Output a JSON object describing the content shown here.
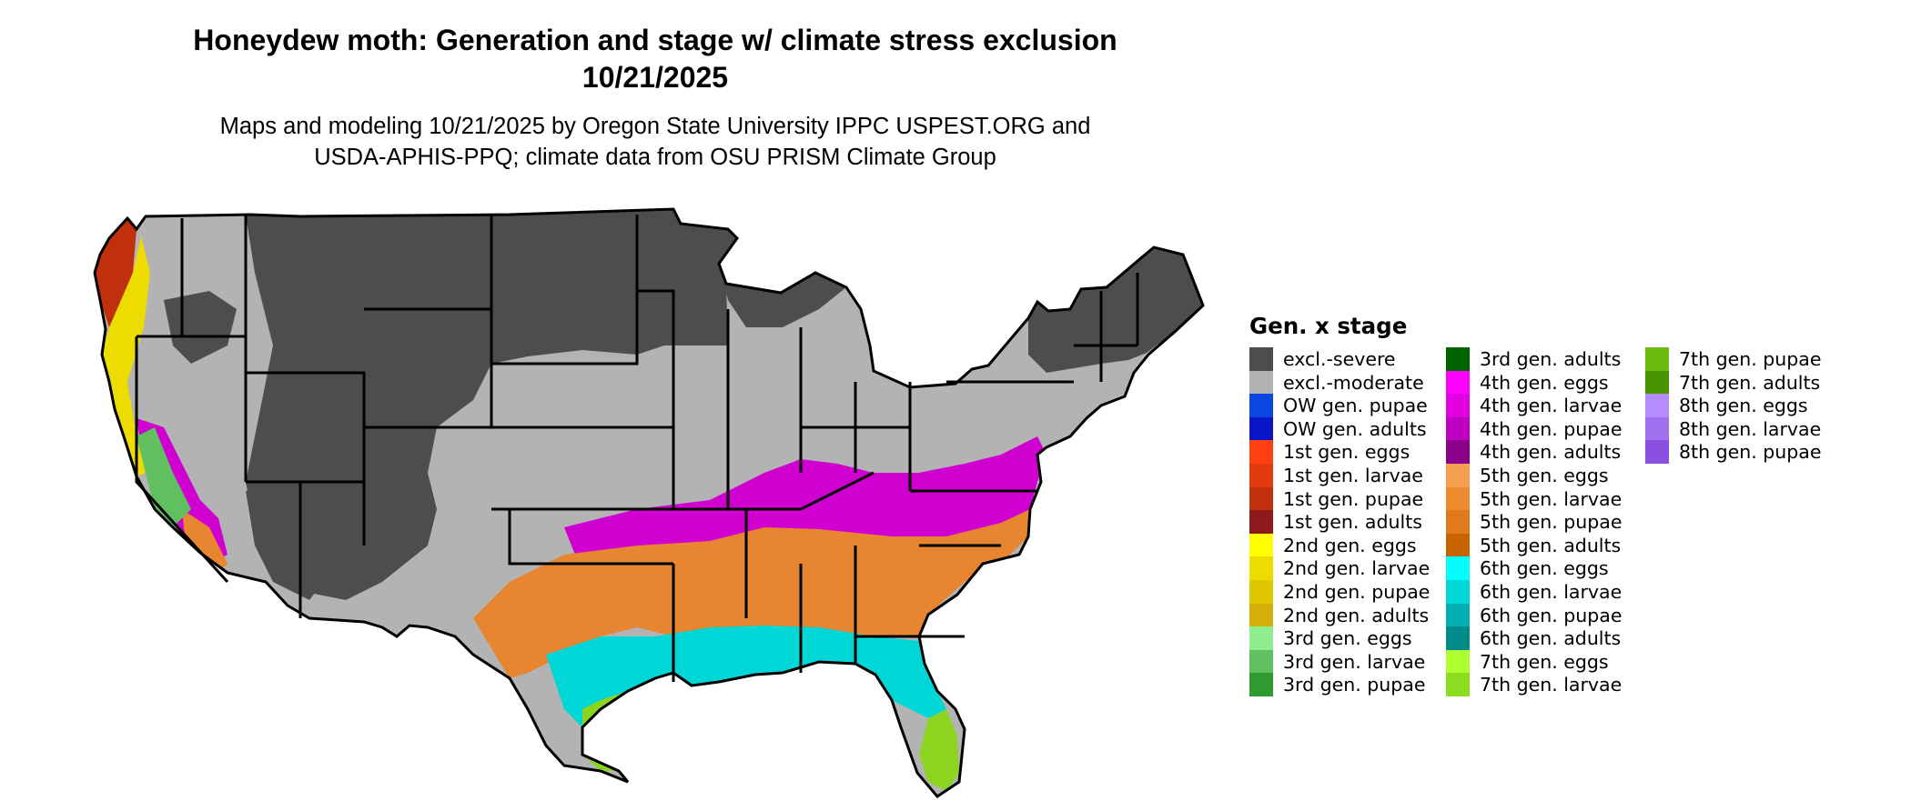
{
  "title_line1": "Honeydew moth: Generation and stage w/ climate stress exclusion",
  "title_line2": "10/21/2025",
  "subtitle_line1": "Maps and modeling 10/21/2025 by Oregon State University IPPC USPEST.ORG and",
  "subtitle_line2": "USDA-APHIS-PPQ; climate data from OSU PRISM Climate Group",
  "legend": {
    "title": "Gen. x stage",
    "items": [
      {
        "label": "excl.-severe",
        "color": "#4d4d4d"
      },
      {
        "label": "excl.-moderate",
        "color": "#b3b3b3"
      },
      {
        "label": "OW gen. pupae",
        "color": "#0a46e0"
      },
      {
        "label": "OW gen. adults",
        "color": "#0a14c8"
      },
      {
        "label": "1st gen. eggs",
        "color": "#ff4010"
      },
      {
        "label": "1st gen. larvae",
        "color": "#e03a0e"
      },
      {
        "label": "1st gen. pupae",
        "color": "#c0300c"
      },
      {
        "label": "1st gen. adults",
        "color": "#8c1a1a"
      },
      {
        "label": "2nd gen. eggs",
        "color": "#ffff00"
      },
      {
        "label": "2nd gen. larvae",
        "color": "#eedc00"
      },
      {
        "label": "2nd gen. pupae",
        "color": "#e0c800"
      },
      {
        "label": "2nd gen. adults",
        "color": "#d4b00a"
      },
      {
        "label": "3rd gen. eggs",
        "color": "#90ee90"
      },
      {
        "label": "3rd gen. larvae",
        "color": "#60c060"
      },
      {
        "label": "3rd gen. pupae",
        "color": "#2f9a2f"
      },
      {
        "label": "3rd gen. adults",
        "color": "#006400"
      },
      {
        "label": "4th gen. eggs",
        "color": "#ff00ff"
      },
      {
        "label": "4th gen. larvae",
        "color": "#e000e0"
      },
      {
        "label": "4th gen. pupae",
        "color": "#c000c0"
      },
      {
        "label": "4th gen. adults",
        "color": "#8b008b"
      },
      {
        "label": "5th gen. eggs",
        "color": "#f5a050"
      },
      {
        "label": "5th gen. larvae",
        "color": "#ee8c30"
      },
      {
        "label": "5th gen. pupae",
        "color": "#e07a1c"
      },
      {
        "label": "5th gen. adults",
        "color": "#c86400"
      },
      {
        "label": "6th gen. eggs",
        "color": "#00ffff"
      },
      {
        "label": "6th gen. larvae",
        "color": "#00d8d8"
      },
      {
        "label": "6th gen. pupae",
        "color": "#00b0b0"
      },
      {
        "label": "6th gen. adults",
        "color": "#008b8b"
      },
      {
        "label": "7th gen. eggs",
        "color": "#adff2f"
      },
      {
        "label": "7th gen. larvae",
        "color": "#8cdc20"
      },
      {
        "label": "7th gen. pupae",
        "color": "#6cbc10"
      },
      {
        "label": "7th gen. adults",
        "color": "#4a9400"
      },
      {
        "label": "8th gen. eggs",
        "color": "#b48cff"
      },
      {
        "label": "8th gen. larvae",
        "color": "#a070f0"
      },
      {
        "label": "8th gen. pupae",
        "color": "#8c50e0"
      }
    ]
  }
}
